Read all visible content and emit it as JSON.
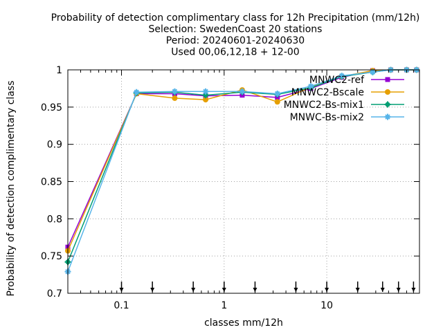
{
  "chart_data": {
    "type": "line",
    "title_lines": [
      "Probability of detection complimentary class  for 12h Precipitation (mm/12h)",
      "Selection: SwedenCoast     20 stations",
      "Period: 20240601-20240630",
      "Used 00,06,12,18 + 12-00"
    ],
    "xlabel": "classes mm/12h",
    "ylabel": "Probability of detection complimentary class",
    "x_scale": "log",
    "xlim": [
      0.03,
      80
    ],
    "ylim": [
      0.7,
      1.0
    ],
    "x_ticks": [
      {
        "value": 0.1,
        "label": "0.1"
      },
      {
        "value": 1,
        "label": "1"
      },
      {
        "value": 10,
        "label": "10"
      }
    ],
    "y_ticks": [
      {
        "value": 0.7,
        "label": "0.7"
      },
      {
        "value": 0.75,
        "label": "0.75"
      },
      {
        "value": 0.8,
        "label": "0.8"
      },
      {
        "value": 0.85,
        "label": "0.85"
      },
      {
        "value": 0.9,
        "label": "0.9"
      },
      {
        "value": 0.95,
        "label": "0.95"
      },
      {
        "value": 1.0,
        "label": "1"
      }
    ],
    "grid": true,
    "legend_position": "top-right",
    "threshold_arrows": [
      0.1,
      0.2,
      0.5,
      1,
      2,
      5,
      10,
      20,
      35,
      50,
      70
    ],
    "x": [
      0.03,
      0.14,
      0.33,
      0.66,
      1.5,
      3.3,
      7,
      14,
      28,
      42,
      60,
      75
    ],
    "series": [
      {
        "name": "MNWC2-ref",
        "color": "#9400d3",
        "marker": "square",
        "values": [
          0.762,
          0.968,
          0.968,
          0.965,
          0.966,
          0.963,
          0.975,
          0.99,
          0.999,
          1.0,
          1.0,
          1.0
        ]
      },
      {
        "name": "MNWC2-Bscale",
        "color": "#e69f00",
        "marker": "circle",
        "values": [
          0.757,
          0.968,
          0.962,
          0.96,
          0.973,
          0.957,
          0.977,
          0.991,
          0.999,
          1.0,
          1.0,
          1.0
        ]
      },
      {
        "name": "MNWC2-Bs-mix1",
        "color": "#009e73",
        "marker": "star",
        "values": [
          0.742,
          0.969,
          0.97,
          0.966,
          0.97,
          0.967,
          0.976,
          0.991,
          0.997,
          1.0,
          1.0,
          1.0
        ]
      },
      {
        "name": "MNWC-Bs-mix2",
        "color": "#56b4e9",
        "marker": "cross",
        "values": [
          0.729,
          0.97,
          0.971,
          0.971,
          0.971,
          0.968,
          0.978,
          0.992,
          0.997,
          1.0,
          1.0,
          1.0
        ]
      }
    ]
  }
}
